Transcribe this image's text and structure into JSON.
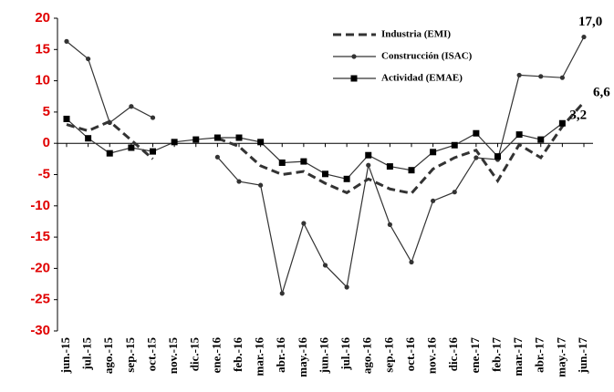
{
  "chart_data": {
    "type": "line",
    "categories": [
      "jun.-15",
      "jul.-15",
      "ago.-15",
      "sep.-15",
      "oct.-15",
      "nov.-15",
      "dic.-15",
      "ene.-16",
      "feb.-16",
      "mar.-16",
      "abr.-16",
      "may.-16",
      "jun.-16",
      "jul.-16",
      "ago.-16",
      "sep.-16",
      "oct.-16",
      "nov.-16",
      "dic.-16",
      "ene.-17",
      "feb.-17",
      "mar.-17",
      "abr.-17",
      "may.-17",
      "jun.-17"
    ],
    "series": [
      {
        "name": "Industria (EMI)",
        "color": "#333333",
        "dash": true,
        "marker": "none",
        "values": [
          3.0,
          2.0,
          3.5,
          0.5,
          -2.5,
          null,
          null,
          0.8,
          -0.5,
          -3.6,
          -5.0,
          -4.5,
          -6.4,
          -7.9,
          -5.7,
          -7.3,
          -8.0,
          -4.1,
          -2.3,
          -1.1,
          -6.0,
          -0.2,
          -2.3,
          2.7,
          6.6
        ]
      },
      {
        "name": "Construcción (ISAC)",
        "color": "#333333",
        "dash": false,
        "marker": "circle",
        "values": [
          16.3,
          13.5,
          3.3,
          5.9,
          4.1,
          null,
          null,
          -2.2,
          -6.1,
          -6.7,
          -24.0,
          -12.8,
          -19.5,
          -23.0,
          -3.5,
          -13.0,
          -19.0,
          -9.2,
          -7.8,
          -2.3,
          -2.6,
          10.9,
          10.7,
          10.5,
          17.0
        ]
      },
      {
        "name": "Actividad (EMAE)",
        "color": "#333333",
        "dash": false,
        "marker": "square",
        "values": [
          3.9,
          0.8,
          -1.6,
          -0.7,
          -1.3,
          0.2,
          0.6,
          0.9,
          0.9,
          0.2,
          -3.1,
          -2.9,
          -4.9,
          -5.7,
          -1.9,
          -3.7,
          -4.3,
          -1.4,
          -0.3,
          1.6,
          -2.1,
          1.4,
          0.6,
          3.2,
          null
        ]
      }
    ],
    "annotations": [
      "17,0",
      "6,6",
      "3,2"
    ],
    "ylim": [
      -30,
      20
    ],
    "yticks": [
      -30,
      -25,
      -20,
      -15,
      -10,
      -5,
      0,
      5,
      10,
      15,
      20
    ]
  }
}
